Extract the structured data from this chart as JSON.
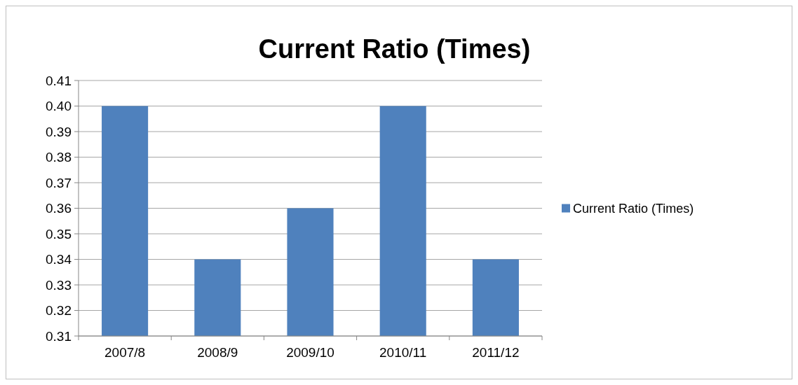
{
  "chart_data": {
    "type": "bar",
    "title": "Current Ratio (Times)",
    "categories": [
      "2007/8",
      "2008/9",
      "2009/10",
      "2010/11",
      "2011/12"
    ],
    "series": [
      {
        "name": "Current Ratio (Times)",
        "color": "#4f81bd",
        "values": [
          0.4,
          0.34,
          0.36,
          0.4,
          0.34
        ]
      }
    ],
    "ylim": [
      0.31,
      0.41
    ],
    "yticks": [
      {
        "value": 0.31,
        "label": "0.31"
      },
      {
        "value": 0.32,
        "label": "0.32"
      },
      {
        "value": 0.33,
        "label": "0.33"
      },
      {
        "value": 0.34,
        "label": "0.34"
      },
      {
        "value": 0.35,
        "label": "0.35"
      },
      {
        "value": 0.36,
        "label": "0.36"
      },
      {
        "value": 0.37,
        "label": "0.37"
      },
      {
        "value": 0.38,
        "label": "0.38"
      },
      {
        "value": 0.39,
        "label": "0.39"
      },
      {
        "value": 0.4,
        "label": "0.40"
      },
      {
        "value": 0.41,
        "label": "0.41"
      }
    ],
    "grid": "y",
    "legend": "right"
  }
}
